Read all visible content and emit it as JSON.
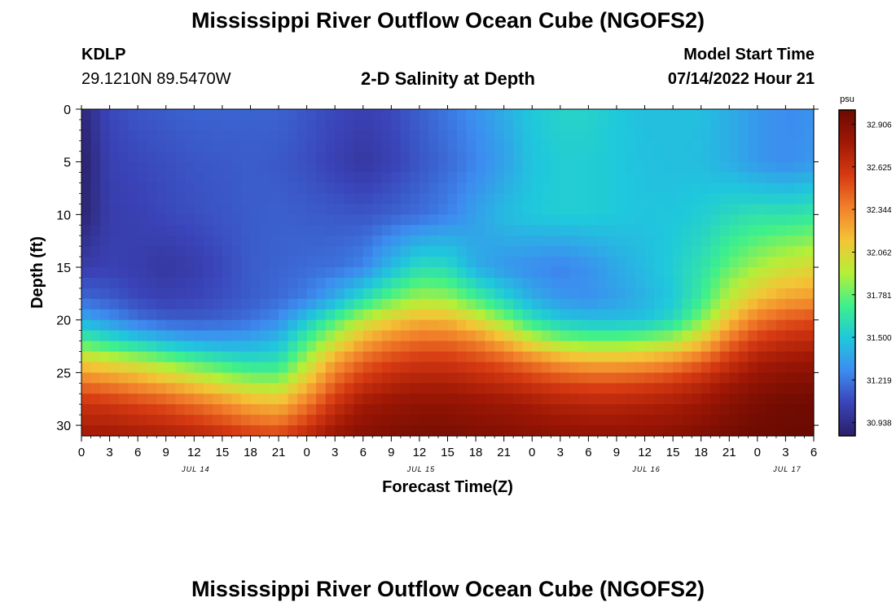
{
  "header": {
    "title": "Mississippi River Outflow Ocean Cube (NGOFS2)",
    "station_id": "KDLP",
    "coords": "29.1210N  89.5470W",
    "subtitle": "2-D Salinity at Depth",
    "start_label": "Model Start Time",
    "start_value": "07/14/2022 Hour 21"
  },
  "footer": {
    "title": "Mississippi River Outflow Ocean Cube (NGOFS2)"
  },
  "chart_data": {
    "type": "heatmap",
    "title": "2-D Salinity at Depth",
    "xlabel": "Forecast Time(Z)",
    "ylabel": "Depth (ft)",
    "x_tick_labels": [
      "0",
      "3",
      "6",
      "9",
      "12",
      "15",
      "18",
      "21",
      "0",
      "3",
      "6",
      "9",
      "12",
      "15",
      "18",
      "21",
      "0",
      "3",
      "6",
      "9",
      "12",
      "15",
      "18",
      "21",
      "0",
      "3",
      "6"
    ],
    "x_hours_since_jul14_00z": [
      0,
      78
    ],
    "date_labels": [
      {
        "label": "JUL 14",
        "hour": 12
      },
      {
        "label": "JUL 15",
        "hour": 36
      },
      {
        "label": "JUL 16",
        "hour": 60
      },
      {
        "label": "JUL 17",
        "hour": 75
      }
    ],
    "y_ticks": [
      0,
      5,
      10,
      15,
      20,
      25,
      30
    ],
    "ylim": [
      0,
      31
    ],
    "y_inverted": true,
    "colorbar": {
      "unit": "psu",
      "ticks": [
        30.938,
        31.219,
        31.5,
        31.781,
        32.062,
        32.344,
        32.625,
        32.906
      ],
      "tick_labels": [
        "30.938",
        "31.219",
        "31.500",
        "31.781",
        "32.062",
        "32.344",
        "32.625",
        "32.906"
      ],
      "range": [
        30.85,
        33.0
      ],
      "colors": [
        "#2a1f66",
        "#3a43b8",
        "#3d8cf0",
        "#1fc8dc",
        "#3ef08c",
        "#b5ef38",
        "#f4c436",
        "#f2802b",
        "#d63a12",
        "#a01805",
        "#6b0a02"
      ]
    },
    "grid": false,
    "salinity_psu": {
      "rows_depth_ft": [
        0,
        5,
        10,
        15,
        18,
        20,
        22,
        24,
        26,
        28,
        31
      ],
      "cols_hour": [
        0,
        3,
        6,
        9,
        12,
        15,
        18,
        21,
        24,
        27,
        30,
        33,
        36,
        39,
        42,
        45,
        48,
        51,
        54,
        57,
        60,
        63,
        66,
        69,
        72,
        75,
        78
      ],
      "values": [
        [
          30.9,
          31.08,
          31.12,
          31.14,
          31.16,
          31.16,
          31.16,
          31.16,
          31.12,
          31.08,
          31.05,
          31.08,
          31.15,
          31.22,
          31.3,
          31.4,
          31.5,
          31.55,
          31.55,
          31.5,
          31.46,
          31.46,
          31.46,
          31.4,
          31.32,
          31.28,
          31.3
        ],
        [
          30.86,
          31.05,
          31.08,
          31.1,
          31.12,
          31.13,
          31.14,
          31.13,
          31.1,
          31.05,
          31.0,
          31.05,
          31.12,
          31.18,
          31.26,
          31.35,
          31.48,
          31.52,
          31.52,
          31.5,
          31.47,
          31.46,
          31.45,
          31.4,
          31.32,
          31.28,
          31.32
        ],
        [
          30.88,
          31.03,
          31.05,
          31.08,
          31.1,
          31.12,
          31.14,
          31.15,
          31.14,
          31.13,
          31.12,
          31.15,
          31.19,
          31.25,
          31.35,
          31.45,
          31.5,
          31.52,
          31.52,
          31.5,
          31.48,
          31.49,
          31.52,
          31.58,
          31.62,
          31.62,
          31.65
        ],
        [
          31.03,
          31.05,
          31.03,
          31.0,
          31.03,
          31.08,
          31.14,
          31.16,
          31.18,
          31.2,
          31.26,
          31.45,
          31.6,
          31.58,
          31.4,
          31.32,
          31.28,
          31.25,
          31.3,
          31.38,
          31.45,
          31.52,
          31.62,
          31.78,
          31.9,
          32.0,
          32.05
        ],
        [
          31.18,
          31.14,
          31.08,
          31.05,
          31.07,
          31.1,
          31.14,
          31.18,
          31.25,
          31.4,
          31.6,
          31.78,
          31.9,
          31.88,
          31.72,
          31.55,
          31.4,
          31.32,
          31.3,
          31.35,
          31.42,
          31.5,
          31.68,
          31.95,
          32.15,
          32.25,
          32.28
        ],
        [
          31.4,
          31.3,
          31.2,
          31.15,
          31.14,
          31.16,
          31.2,
          31.28,
          31.5,
          31.72,
          31.95,
          32.1,
          32.2,
          32.18,
          32.05,
          31.85,
          31.62,
          31.5,
          31.46,
          31.46,
          31.48,
          31.58,
          31.82,
          32.15,
          32.38,
          32.48,
          32.52
        ],
        [
          31.72,
          31.62,
          31.52,
          31.44,
          31.38,
          31.36,
          31.38,
          31.45,
          31.72,
          31.98,
          32.22,
          32.35,
          32.42,
          32.42,
          32.35,
          32.2,
          32.0,
          31.85,
          31.8,
          31.8,
          31.84,
          31.92,
          32.12,
          32.4,
          32.58,
          32.65,
          32.68
        ],
        [
          32.1,
          32.02,
          31.95,
          31.85,
          31.75,
          31.66,
          31.6,
          31.62,
          31.92,
          32.25,
          32.45,
          32.55,
          32.6,
          32.6,
          32.55,
          32.48,
          32.38,
          32.28,
          32.22,
          32.22,
          32.25,
          32.32,
          32.45,
          32.62,
          32.75,
          32.8,
          32.82
        ],
        [
          32.4,
          32.35,
          32.28,
          32.2,
          32.1,
          32.0,
          31.9,
          31.88,
          32.15,
          32.45,
          32.62,
          32.7,
          32.74,
          32.74,
          32.7,
          32.66,
          32.6,
          32.55,
          32.52,
          32.52,
          32.55,
          32.6,
          32.68,
          32.78,
          32.86,
          32.9,
          32.92
        ],
        [
          32.62,
          32.6,
          32.55,
          32.5,
          32.42,
          32.33,
          32.22,
          32.18,
          32.38,
          32.62,
          32.78,
          32.82,
          32.85,
          32.85,
          32.82,
          32.8,
          32.76,
          32.72,
          32.7,
          32.7,
          32.72,
          32.75,
          32.8,
          32.88,
          32.94,
          32.97,
          32.98
        ],
        [
          32.78,
          32.78,
          32.76,
          32.74,
          32.7,
          32.65,
          32.58,
          32.55,
          32.68,
          32.82,
          32.9,
          32.92,
          32.94,
          32.94,
          32.92,
          32.9,
          32.88,
          32.86,
          32.85,
          32.85,
          32.86,
          32.88,
          32.92,
          32.96,
          32.99,
          33.0,
          33.0
        ]
      ]
    }
  }
}
